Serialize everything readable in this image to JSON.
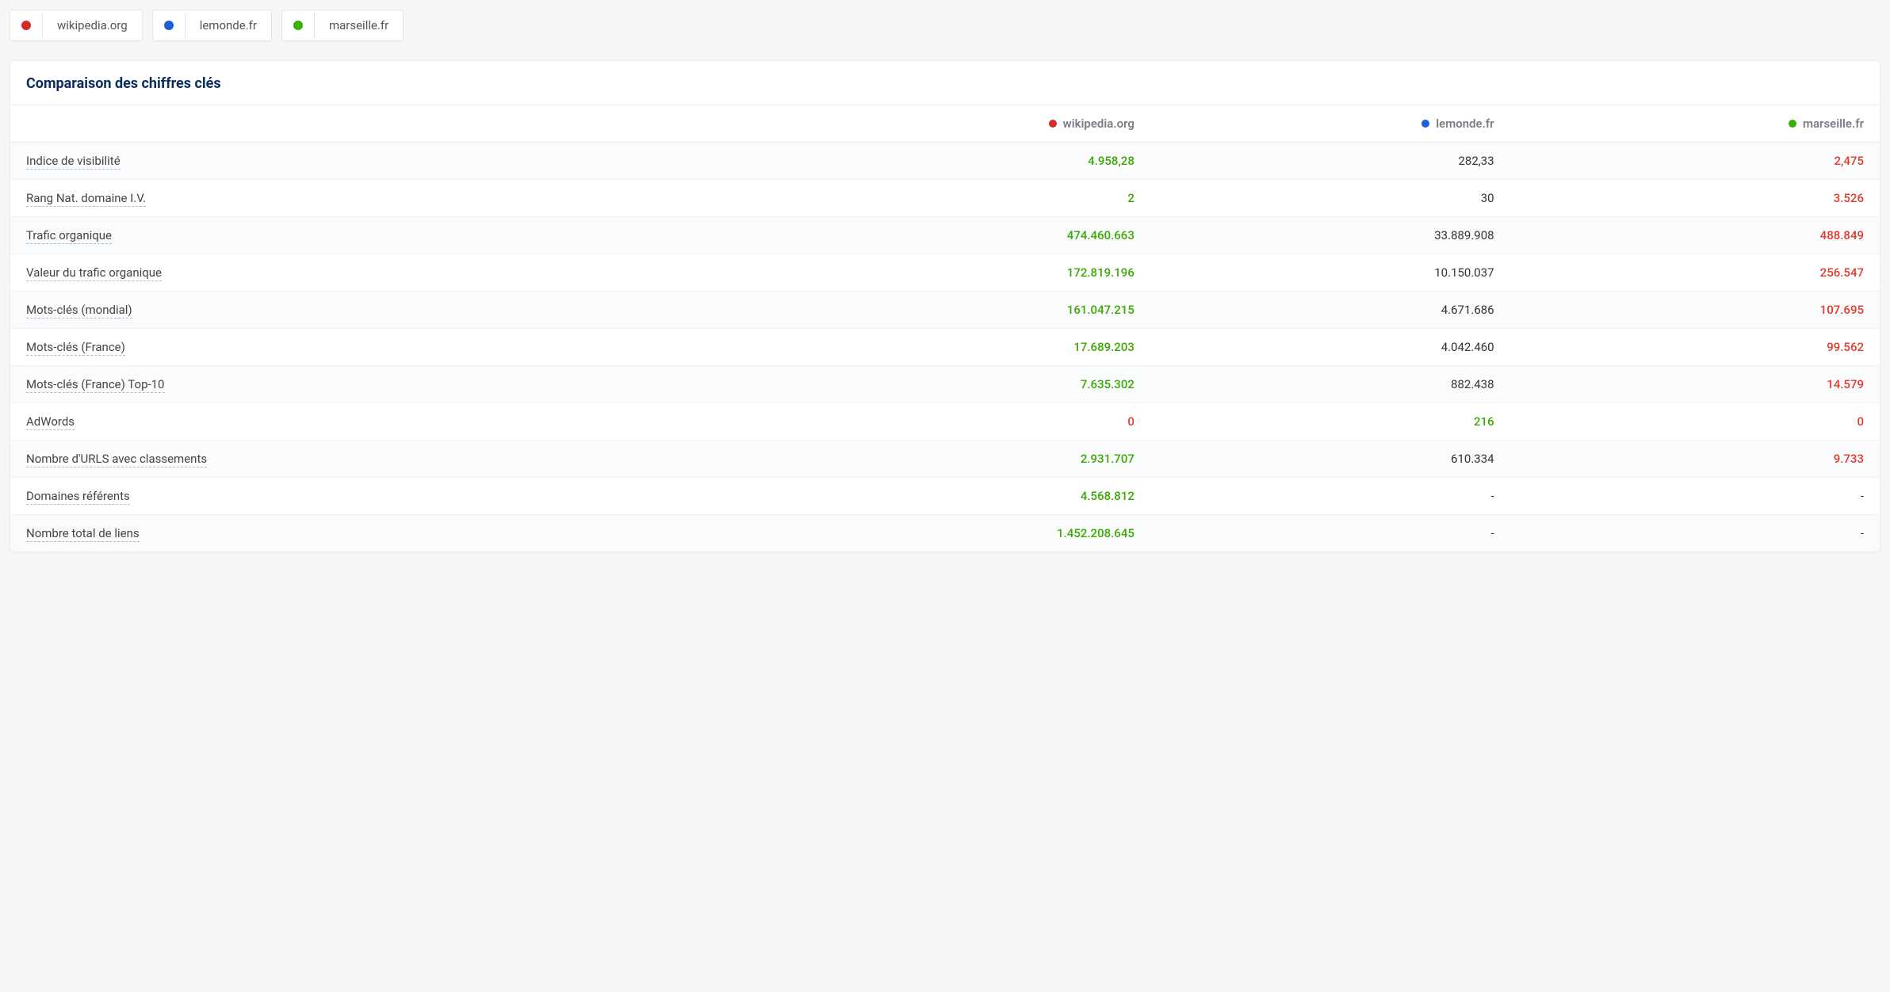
{
  "colors": {
    "domain1": "#d62a2a",
    "domain2": "#1f5ed8",
    "domain3": "#39b000",
    "best": "#3aaa00",
    "worst": "#e23b2e",
    "neutral": "#333333",
    "title": "#0b2d5b"
  },
  "legend": {
    "d1": "wikipedia.org",
    "d2": "lemonde.fr",
    "d3": "marseille.fr"
  },
  "card": {
    "title": "Comparaison des chiffres clés"
  },
  "table": {
    "head": {
      "col0": "",
      "col1": "wikipedia.org",
      "col2": "lemonde.fr",
      "col3": "marseille.fr"
    },
    "rows": [
      {
        "label": "Indice de visibilité",
        "c1": {
          "v": "4.958,28",
          "s": "best"
        },
        "c2": {
          "v": "282,33",
          "s": "neutral"
        },
        "c3": {
          "v": "2,475",
          "s": "worst"
        }
      },
      {
        "label": "Rang Nat. domaine I.V.",
        "c1": {
          "v": "2",
          "s": "best"
        },
        "c2": {
          "v": "30",
          "s": "neutral"
        },
        "c3": {
          "v": "3.526",
          "s": "worst"
        }
      },
      {
        "label": "Trafic organique",
        "c1": {
          "v": "474.460.663",
          "s": "best"
        },
        "c2": {
          "v": "33.889.908",
          "s": "neutral"
        },
        "c3": {
          "v": "488.849",
          "s": "worst"
        }
      },
      {
        "label": "Valeur du trafic organique",
        "c1": {
          "v": "172.819.196",
          "s": "best"
        },
        "c2": {
          "v": "10.150.037",
          "s": "neutral"
        },
        "c3": {
          "v": "256.547",
          "s": "worst"
        }
      },
      {
        "label": "Mots-clés (mondial)",
        "c1": {
          "v": "161.047.215",
          "s": "best"
        },
        "c2": {
          "v": "4.671.686",
          "s": "neutral"
        },
        "c3": {
          "v": "107.695",
          "s": "worst"
        }
      },
      {
        "label": "Mots-clés (France)",
        "c1": {
          "v": "17.689.203",
          "s": "best"
        },
        "c2": {
          "v": "4.042.460",
          "s": "neutral"
        },
        "c3": {
          "v": "99.562",
          "s": "worst"
        }
      },
      {
        "label": "Mots-clés (France) Top-10",
        "c1": {
          "v": "7.635.302",
          "s": "best"
        },
        "c2": {
          "v": "882.438",
          "s": "neutral"
        },
        "c3": {
          "v": "14.579",
          "s": "worst"
        }
      },
      {
        "label": "AdWords",
        "c1": {
          "v": "0",
          "s": "worst"
        },
        "c2": {
          "v": "216",
          "s": "best"
        },
        "c3": {
          "v": "0",
          "s": "worst"
        }
      },
      {
        "label": "Nombre d'URLS avec classements",
        "c1": {
          "v": "2.931.707",
          "s": "best"
        },
        "c2": {
          "v": "610.334",
          "s": "neutral"
        },
        "c3": {
          "v": "9.733",
          "s": "worst"
        }
      },
      {
        "label": "Domaines référents",
        "c1": {
          "v": "4.568.812",
          "s": "best"
        },
        "c2": {
          "v": "-",
          "s": "neutral"
        },
        "c3": {
          "v": "-",
          "s": "neutral"
        }
      },
      {
        "label": "Nombre total de liens",
        "c1": {
          "v": "1.452.208.645",
          "s": "best"
        },
        "c2": {
          "v": "-",
          "s": "neutral"
        },
        "c3": {
          "v": "-",
          "s": "neutral"
        }
      }
    ]
  }
}
